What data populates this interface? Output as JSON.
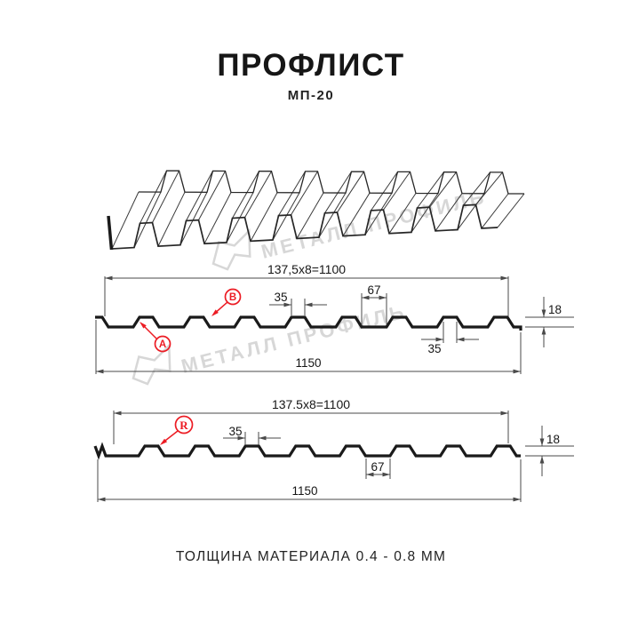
{
  "header": {
    "title": "ПРОФЛИСТ",
    "subtitle": "МП-20"
  },
  "watermark": {
    "brand": "МЕТАЛЛ ПРОФИЛЬ"
  },
  "view_top": {
    "module_dimension": "137,5x8=1100",
    "crest_width": "35",
    "valley_width": "67",
    "profile_height": "18",
    "crest_width_2": "35",
    "overall_width": "1150",
    "callout_a": "A",
    "callout_b": "B"
  },
  "view_bottom": {
    "module_dimension": "137.5x8=1100",
    "crest_width": "35",
    "valley_width": "67",
    "profile_height": "18",
    "overall_width": "1150",
    "callout_r": "R"
  },
  "footer": {
    "note": "ТОЛЩИНА МАТЕРИАЛА 0.4 - 0.8 ММ"
  },
  "colors": {
    "accent_red": "#ec1c24",
    "line": "#1a1a1a",
    "dim_line": "#4a4a4a",
    "watermark": "#d7d7d7"
  }
}
